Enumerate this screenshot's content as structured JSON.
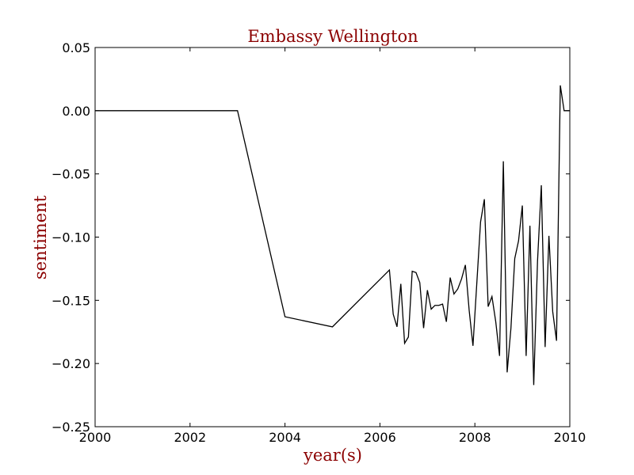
{
  "chart_data": {
    "type": "line",
    "title": "Embassy Wellington",
    "xlabel": "year(s)",
    "ylabel": "sentiment",
    "xlim": [
      2000,
      2010
    ],
    "ylim": [
      -0.25,
      0.05
    ],
    "x_ticks": [
      "2000",
      "2002",
      "2004",
      "2006",
      "2008",
      "2010"
    ],
    "y_ticks": [
      "0.05",
      "0.00",
      "−0.05",
      "−0.10",
      "−0.15",
      "−0.20",
      "−0.25"
    ],
    "grid": false,
    "label_color": "#8b0000",
    "line_color": "#000000",
    "series": [
      {
        "x": [
          2000.0,
          2003.0,
          2004.0,
          2005.0,
          2006.2,
          2006.28,
          2006.36,
          2006.44,
          2006.52,
          2006.6,
          2006.68,
          2006.76,
          2006.84,
          2006.92,
          2007.0,
          2007.08,
          2007.16,
          2007.24,
          2007.32,
          2007.4,
          2007.48,
          2007.56,
          2007.64,
          2007.72,
          2007.8,
          2007.88,
          2007.96,
          2008.04,
          2008.12,
          2008.2,
          2008.28,
          2008.36,
          2008.44,
          2008.52,
          2008.6,
          2008.68,
          2008.76,
          2008.84,
          2008.92,
          2009.0,
          2009.08,
          2009.16,
          2009.24,
          2009.32,
          2009.4,
          2009.48,
          2009.56,
          2009.64,
          2009.72,
          2009.8,
          2009.88,
          2009.96,
          2010.0
        ],
        "y": [
          0.0,
          0.0,
          -0.163,
          -0.171,
          -0.126,
          -0.161,
          -0.171,
          -0.137,
          -0.184,
          -0.179,
          -0.127,
          -0.128,
          -0.136,
          -0.172,
          -0.142,
          -0.157,
          -0.154,
          -0.154,
          -0.153,
          -0.167,
          -0.132,
          -0.145,
          -0.141,
          -0.133,
          -0.122,
          -0.158,
          -0.186,
          -0.137,
          -0.088,
          -0.07,
          -0.155,
          -0.147,
          -0.167,
          -0.194,
          -0.04,
          -0.207,
          -0.172,
          -0.117,
          -0.103,
          -0.075,
          -0.194,
          -0.091,
          -0.217,
          -0.119,
          -0.059,
          -0.187,
          -0.099,
          -0.159,
          -0.182,
          0.02,
          0.0,
          0.0,
          0.0
        ]
      }
    ]
  }
}
